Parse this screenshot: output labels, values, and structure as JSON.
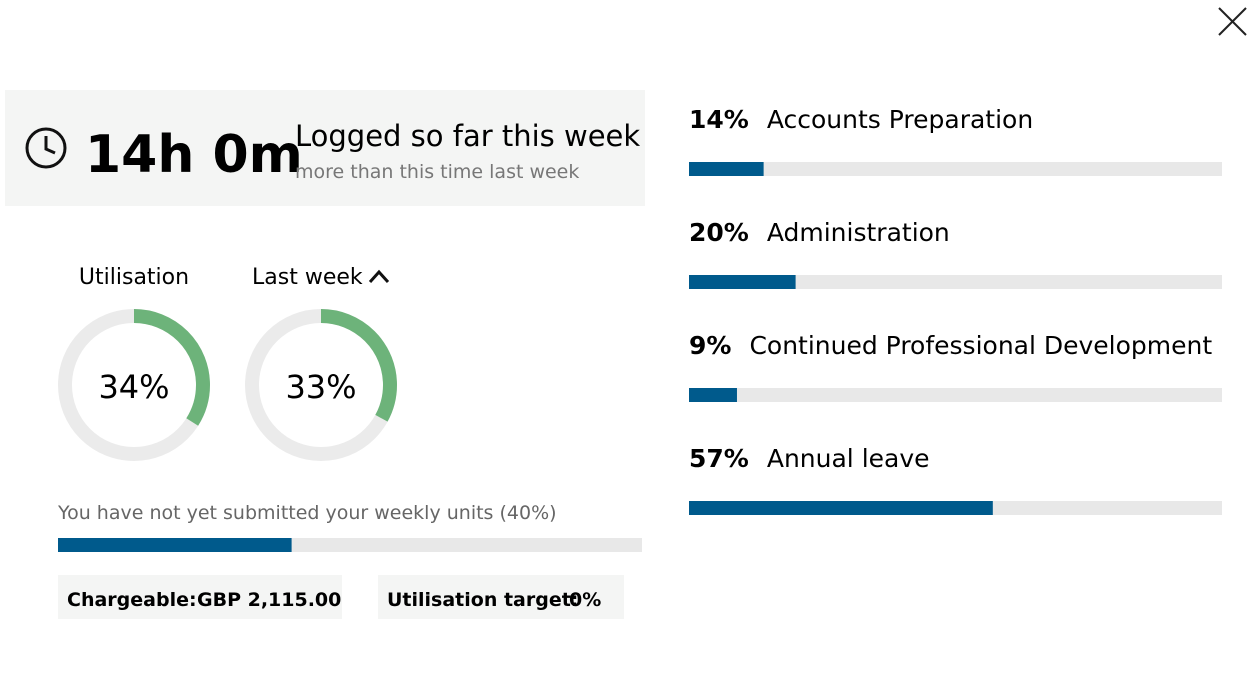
{
  "header": {
    "hours": "14h 0m",
    "title": "Logged so far this week",
    "subtitle": "more than this time last week"
  },
  "gauges": [
    {
      "label": "Utilisation",
      "value": 34,
      "value_label": "34%"
    },
    {
      "label": "Last week",
      "value": 33,
      "value_label": "33%"
    }
  ],
  "units": {
    "text": "You have not yet submitted your weekly units",
    "value": 40,
    "value_label": "(40%)"
  },
  "chargeable": {
    "label": "Chargeable:",
    "value": "GBP 2,115.00"
  },
  "target": {
    "label": "Utilisation target:",
    "value": "0%"
  },
  "breakdown": [
    {
      "name": "Accounts Preparation",
      "value": 14,
      "value_label": "14%"
    },
    {
      "name": "Administration",
      "value": 20,
      "value_label": "20%"
    },
    {
      "name": "Continued Professional Development",
      "value": 9,
      "value_label": "9%"
    },
    {
      "name": "Annual leave",
      "value": 57,
      "value_label": "57%"
    }
  ]
}
